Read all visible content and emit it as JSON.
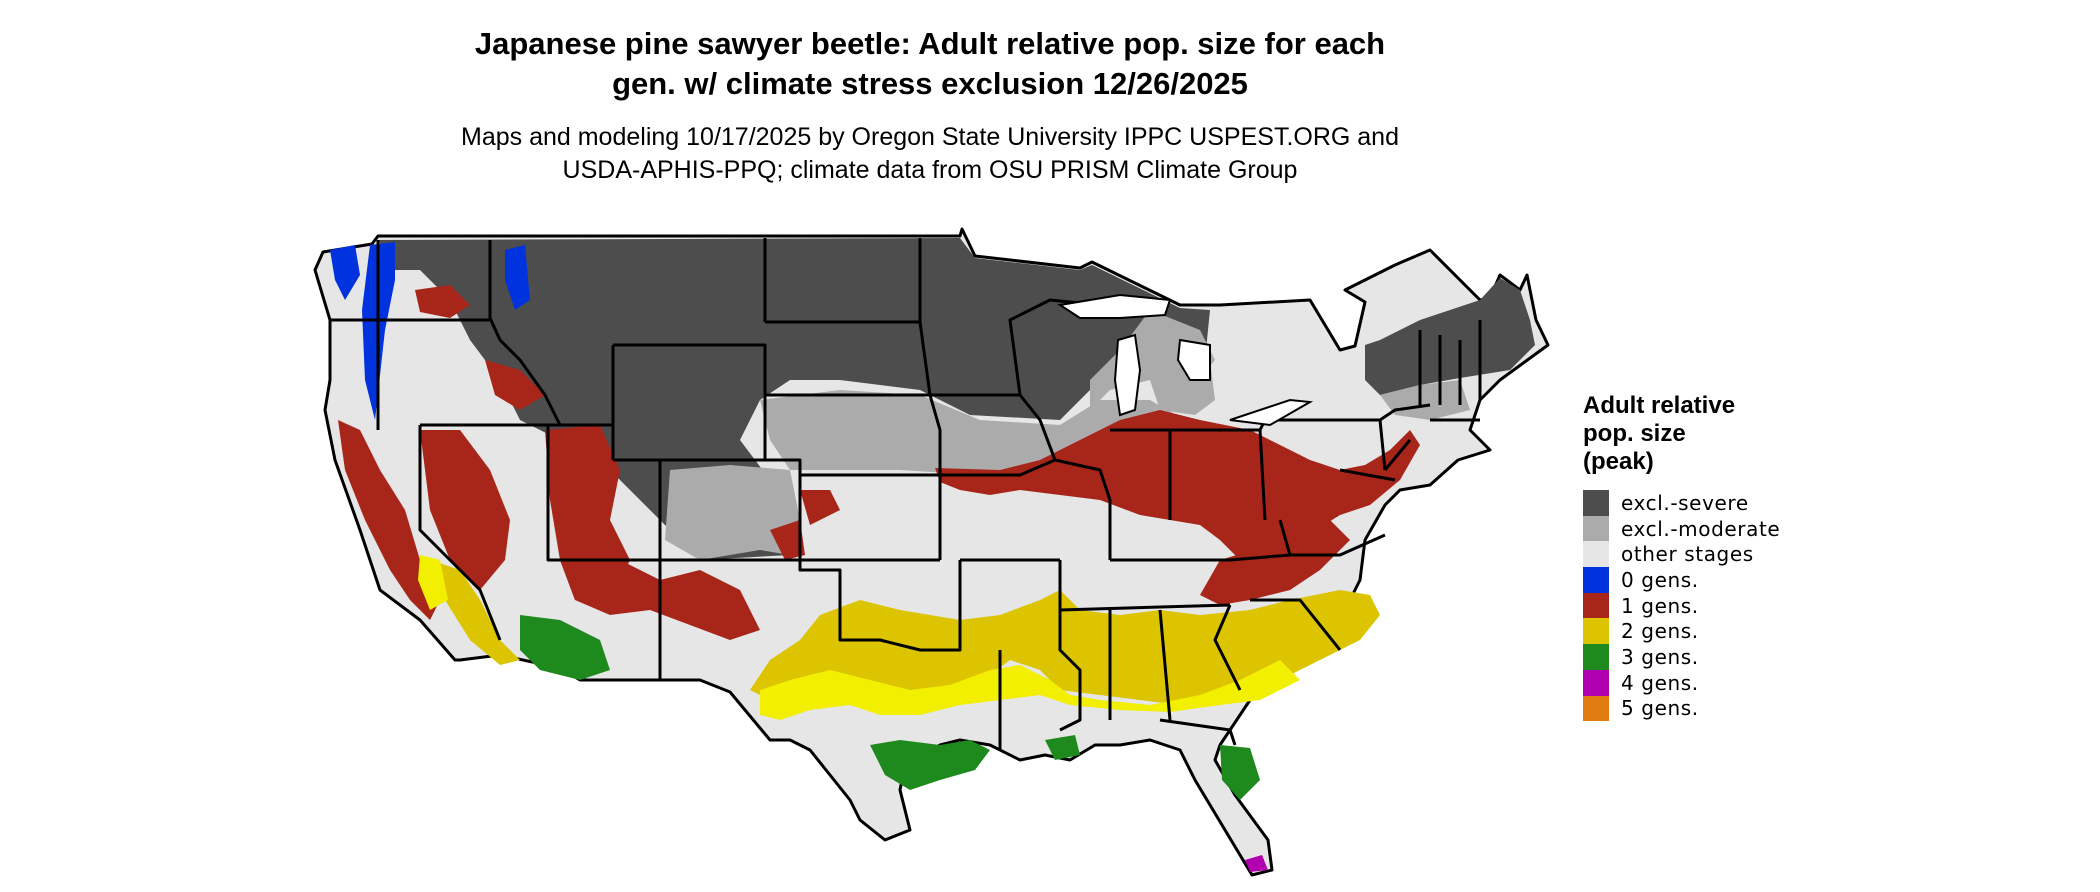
{
  "title_line1": "Japanese pine sawyer beetle: Adult relative pop. size for each",
  "title_line2": "gen. w/ climate stress exclusion 12/26/2025",
  "subtitle_line1": "Maps and modeling 10/17/2025 by Oregon State University IPPC USPEST.ORG and",
  "subtitle_line2": "USDA-APHIS-PPQ; climate data from OSU PRISM Climate Group",
  "map": {
    "region": "contiguous-us-states",
    "boundary_color": "#000000",
    "background_class": "other stages"
  },
  "legend": {
    "title_line1": "Adult relative",
    "title_line2": "pop. size",
    "title_line3": "(peak)",
    "items": [
      {
        "label": "excl.-severe",
        "color": "#4d4d4d"
      },
      {
        "label": "excl.-moderate",
        "color": "#ababab"
      },
      {
        "label": "other stages",
        "color": "#e6e6e6"
      },
      {
        "label": "0 gens.",
        "color": "#0033dd"
      },
      {
        "label": "1 gens.",
        "color": "#a8251a"
      },
      {
        "label": "2 gens.",
        "color": "#dcc400"
      },
      {
        "label": "3 gens.",
        "color": "#1e8a1e"
      },
      {
        "label": "4 gens.",
        "color": "#b000b0"
      },
      {
        "label": "5 gens.",
        "color": "#e07c10"
      }
    ]
  }
}
